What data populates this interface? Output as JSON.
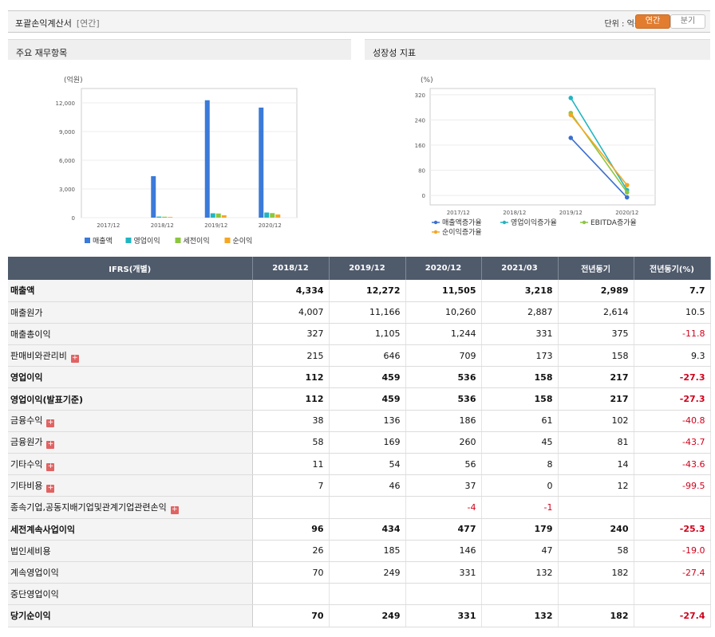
{
  "header": {
    "title": "포괄손익계산서",
    "period_tag": "[연간]",
    "unit_label": "단위 : 억원",
    "btn_annual": "연간",
    "btn_quarter": "분기"
  },
  "panels": {
    "left_title": "주요 재무항목",
    "right_title": "성장성 지표"
  },
  "chart_data": [
    {
      "type": "bar",
      "ylabel": "(억원)",
      "categories": [
        "2017/12",
        "2018/12",
        "2019/12",
        "2020/12"
      ],
      "yticks": [
        "12,000",
        "9,000",
        "6,000",
        "3,000",
        "0"
      ],
      "ylim": [
        0,
        13500
      ],
      "series": [
        {
          "name": "매출액",
          "color": "#3a7ad9",
          "values": [
            null,
            4334,
            12272,
            11505
          ]
        },
        {
          "name": "영업이익",
          "color": "#21b5c2",
          "values": [
            null,
            112,
            459,
            536
          ]
        },
        {
          "name": "세전이익",
          "color": "#8cc63f",
          "values": [
            null,
            96,
            434,
            477
          ]
        },
        {
          "name": "순이익",
          "color": "#f5a623",
          "values": [
            null,
            70,
            249,
            331
          ]
        }
      ]
    },
    {
      "type": "line",
      "ylabel": "(%)",
      "categories": [
        "2017/12",
        "2018/12",
        "2019/12",
        "2020/12"
      ],
      "yticks": [
        "320",
        "240",
        "160",
        "80",
        "0"
      ],
      "ylim": [
        -30,
        340
      ],
      "series": [
        {
          "name": "매출액증가율",
          "color": "#3a6fd0",
          "values": [
            null,
            null,
            183,
            -6
          ]
        },
        {
          "name": "영업이익증가율",
          "color": "#21b5c2",
          "values": [
            null,
            null,
            310,
            17
          ]
        },
        {
          "name": "EBITDA증가율",
          "color": "#8cc63f",
          "values": [
            null,
            null,
            262,
            10
          ]
        },
        {
          "name": "순이익증가율",
          "color": "#f5a623",
          "values": [
            null,
            null,
            256,
            33
          ]
        }
      ]
    }
  ],
  "table": {
    "headers": [
      "IFRS(개별)",
      "2018/12",
      "2019/12",
      "2020/12",
      "2021/03",
      "전년동기",
      "전년동기(%)"
    ],
    "rows": [
      {
        "label": "매출액",
        "bold": true,
        "plus": false,
        "cells": [
          "4,334",
          "12,272",
          "11,505",
          "3,218",
          "2,989",
          "7.7"
        ]
      },
      {
        "label": "매출원가",
        "bold": false,
        "plus": false,
        "cells": [
          "4,007",
          "11,166",
          "10,260",
          "2,887",
          "2,614",
          "10.5"
        ]
      },
      {
        "label": "매출총이익",
        "bold": false,
        "plus": false,
        "cells": [
          "327",
          "1,105",
          "1,244",
          "331",
          "375",
          "-11.8"
        ]
      },
      {
        "label": "판매비와관리비",
        "bold": false,
        "plus": true,
        "cells": [
          "215",
          "646",
          "709",
          "173",
          "158",
          "9.3"
        ]
      },
      {
        "label": "영업이익",
        "bold": true,
        "plus": false,
        "cells": [
          "112",
          "459",
          "536",
          "158",
          "217",
          "-27.3"
        ]
      },
      {
        "label": "영업이익(발표기준)",
        "bold": true,
        "plus": false,
        "cells": [
          "112",
          "459",
          "536",
          "158",
          "217",
          "-27.3"
        ]
      },
      {
        "label": "금융수익",
        "bold": false,
        "plus": true,
        "cells": [
          "38",
          "136",
          "186",
          "61",
          "102",
          "-40.8"
        ]
      },
      {
        "label": "금융원가",
        "bold": false,
        "plus": true,
        "cells": [
          "58",
          "169",
          "260",
          "45",
          "81",
          "-43.7"
        ]
      },
      {
        "label": "기타수익",
        "bold": false,
        "plus": true,
        "cells": [
          "11",
          "54",
          "56",
          "8",
          "14",
          "-43.6"
        ]
      },
      {
        "label": "기타비용",
        "bold": false,
        "plus": true,
        "cells": [
          "7",
          "46",
          "37",
          "0",
          "12",
          "-99.5"
        ]
      },
      {
        "label": "종속기업,공동지배기업및관계기업관련손익",
        "bold": false,
        "plus": true,
        "cells": [
          "",
          "",
          "-4",
          "-1",
          "",
          ""
        ]
      },
      {
        "label": "세전계속사업이익",
        "bold": true,
        "plus": false,
        "cells": [
          "96",
          "434",
          "477",
          "179",
          "240",
          "-25.3"
        ]
      },
      {
        "label": "법인세비용",
        "bold": false,
        "plus": false,
        "cells": [
          "26",
          "185",
          "146",
          "47",
          "58",
          "-19.0"
        ]
      },
      {
        "label": "계속영업이익",
        "bold": false,
        "plus": false,
        "cells": [
          "70",
          "249",
          "331",
          "132",
          "182",
          "-27.4"
        ]
      },
      {
        "label": "중단영업이익",
        "bold": false,
        "plus": false,
        "cells": [
          "",
          "",
          "",
          "",
          "",
          ""
        ]
      },
      {
        "label": "당기순이익",
        "bold": true,
        "plus": false,
        "cells": [
          "70",
          "249",
          "331",
          "132",
          "182",
          "-27.4"
        ]
      }
    ]
  }
}
